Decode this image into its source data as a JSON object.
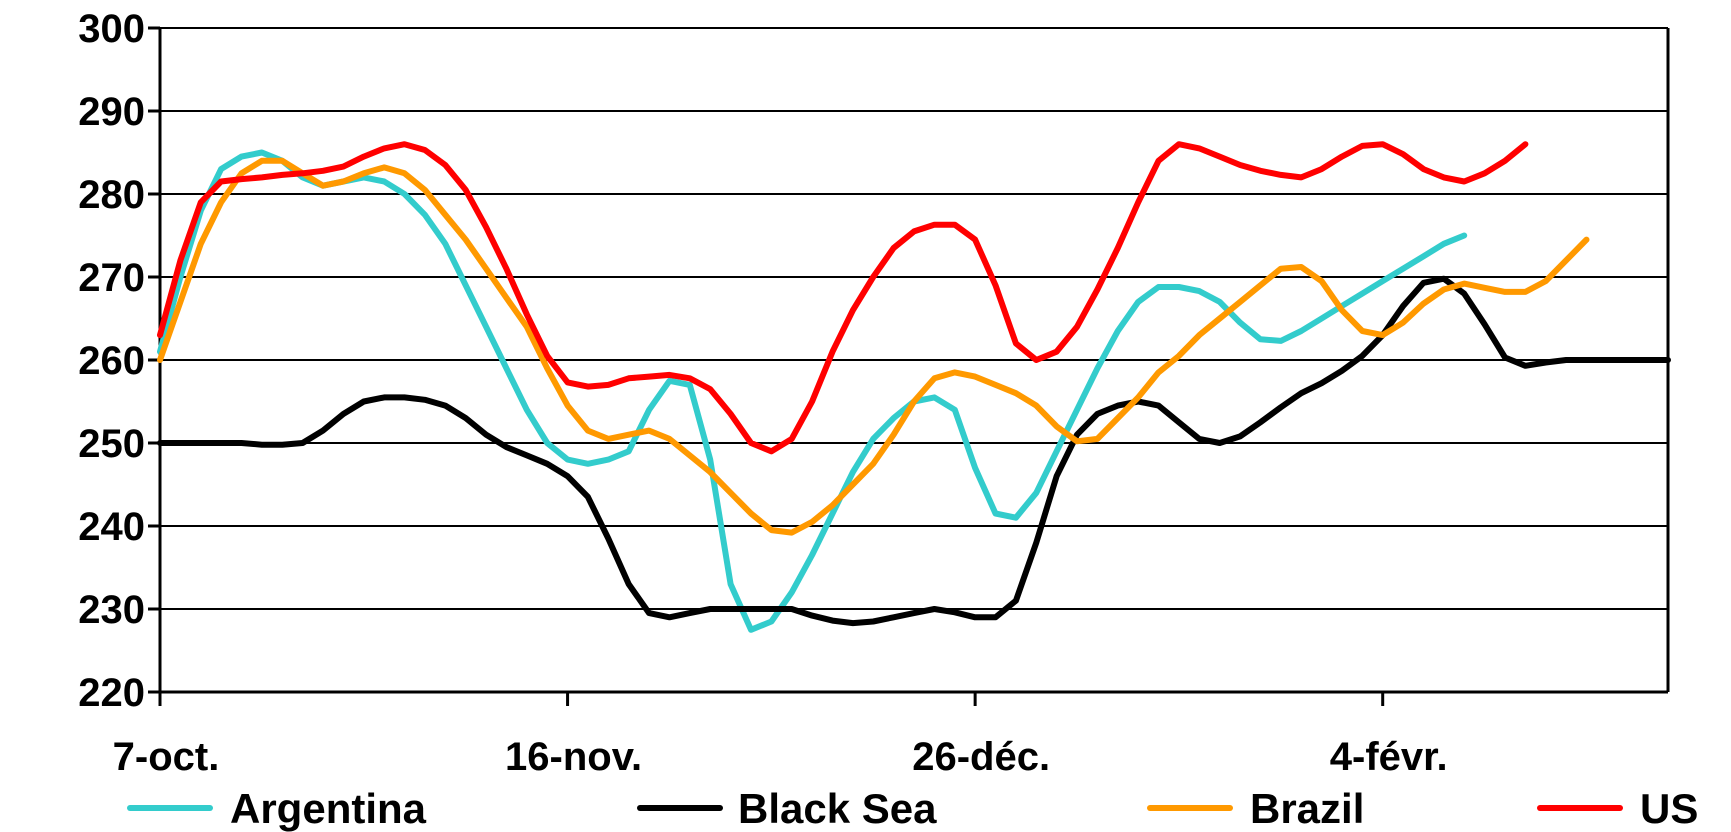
{
  "chart_data": {
    "type": "line",
    "title": "",
    "xlabel": "",
    "ylabel": "",
    "ylim": [
      220,
      300
    ],
    "yticks": [
      "220",
      "230",
      "240",
      "250",
      "260",
      "270",
      "280",
      "290",
      "300"
    ],
    "xtick_labels": [
      "7-oct.",
      "16-nov.",
      "26-déc.",
      "4-févr."
    ],
    "xtick_days": [
      0,
      40,
      80,
      120
    ],
    "x_days": [
      0,
      2,
      4,
      6,
      8,
      10,
      12,
      14,
      16,
      18,
      20,
      22,
      24,
      26,
      28,
      30,
      32,
      34,
      36,
      38,
      40,
      42,
      44,
      46,
      48,
      50,
      52,
      54,
      56,
      58,
      60,
      62,
      64,
      66,
      68,
      70,
      72,
      74,
      76,
      78,
      80,
      82,
      84,
      86,
      88,
      90,
      92,
      94,
      96,
      98,
      100,
      102,
      104,
      106,
      108,
      110,
      112,
      114,
      116,
      118,
      120,
      122,
      124,
      126,
      128,
      130,
      132,
      134,
      136,
      138,
      140,
      142,
      144,
      146,
      148
    ],
    "grid": true,
    "legend_position": "bottom",
    "series": [
      {
        "name": "Argentina",
        "color": "#33cccc",
        "values": [
          261,
          270,
          278,
          283,
          284.5,
          285,
          284,
          282,
          281,
          281.5,
          282,
          281.5,
          280,
          277.5,
          274,
          269,
          264,
          259,
          254,
          250,
          248,
          247.5,
          248,
          249,
          254,
          257.5,
          257,
          248,
          233,
          227.5,
          228.5,
          232,
          236.5,
          241.5,
          246.5,
          250.5,
          253,
          255,
          255.5,
          254,
          247,
          241.5,
          241,
          244,
          249,
          254,
          259,
          263.5,
          267,
          268.8,
          268.8,
          268.3,
          267,
          264.5,
          262.5,
          262.3,
          263.5,
          265,
          266.5,
          268,
          269.5,
          271,
          272.5,
          274,
          275
        ]
      },
      {
        "name": "Black Sea",
        "color": "#000000",
        "values": [
          250,
          250,
          250,
          250,
          250,
          249.8,
          249.8,
          250,
          251.5,
          253.5,
          255,
          255.5,
          255.5,
          255.2,
          254.5,
          253,
          251,
          249.5,
          248.5,
          247.5,
          246,
          243.5,
          238.5,
          233,
          229.5,
          229,
          229.5,
          230,
          230,
          230,
          230,
          230,
          229.2,
          228.6,
          228.3,
          228.5,
          229,
          229.5,
          230,
          229.6,
          229,
          229,
          231,
          238,
          246,
          251,
          253.5,
          254.5,
          255,
          254.5,
          252.5,
          250.5,
          250,
          250.8,
          252.5,
          254.3,
          256,
          257.2,
          258.7,
          260.5,
          263,
          266.5,
          269.3,
          269.8,
          268,
          264.3,
          260.3,
          259.3,
          259.7,
          260,
          260,
          260,
          260,
          260,
          260
        ]
      },
      {
        "name": "Brazil",
        "color": "#ff9900",
        "values": [
          260,
          267,
          274,
          279,
          282.5,
          284,
          284,
          282.5,
          281,
          281.5,
          282.5,
          283.2,
          282.5,
          280.5,
          277.5,
          274.5,
          271,
          267.5,
          264,
          259,
          254.5,
          251.5,
          250.5,
          251,
          251.5,
          250.5,
          248.5,
          246.5,
          244,
          241.5,
          239.5,
          239.2,
          240.5,
          242.5,
          245,
          247.5,
          251,
          255,
          257.8,
          258.5,
          258,
          257,
          256,
          254.5,
          252,
          250.2,
          250.5,
          253,
          255.5,
          258.5,
          260.5,
          263,
          265,
          267,
          269,
          271,
          271.2,
          269.5,
          266,
          263.5,
          263,
          264.5,
          266.8,
          268.5,
          269.2,
          268.7,
          268.2,
          268.2,
          269.5,
          272,
          274.5
        ]
      },
      {
        "name": "US",
        "color": "#ff0000",
        "values": [
          263,
          272,
          279,
          281.5,
          281.8,
          282,
          282.3,
          282.5,
          282.8,
          283.3,
          284.5,
          285.5,
          286,
          285.3,
          283.5,
          280.5,
          276,
          271,
          265.5,
          260.5,
          257.3,
          256.8,
          257,
          257.8,
          258,
          258.2,
          257.8,
          256.5,
          253.5,
          250,
          249,
          250.5,
          255,
          261,
          266,
          270,
          273.5,
          275.5,
          276.3,
          276.3,
          274.5,
          269,
          262,
          260,
          261,
          264,
          268.5,
          273.5,
          279,
          284,
          286,
          285.5,
          284.5,
          283.5,
          282.8,
          282.3,
          282,
          283,
          284.5,
          285.8,
          286,
          284.8,
          283,
          282,
          281.5,
          282.5,
          284,
          286
        ]
      }
    ]
  }
}
